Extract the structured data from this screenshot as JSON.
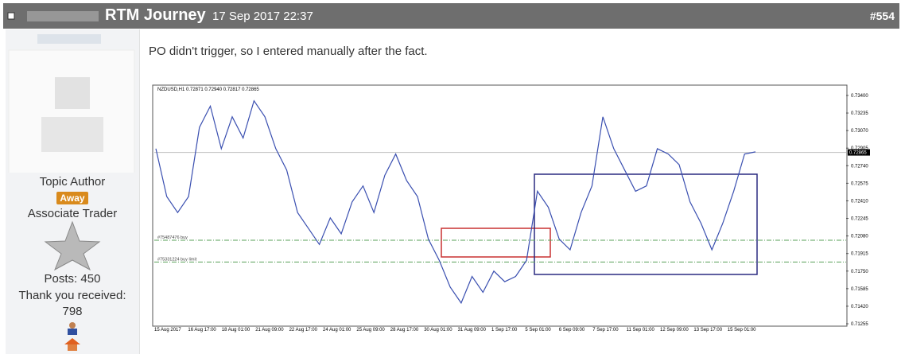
{
  "header": {
    "title": "RTM Journey",
    "date": "17 Sep 2017 22:37",
    "post_number": "#554"
  },
  "author": {
    "role": "Topic Author",
    "status": "Away",
    "rank": "Associate Trader",
    "posts": "Posts: 450",
    "thanks_label": "Thank you received:",
    "thanks": "798"
  },
  "post": {
    "text": "PO didn't trigger, so I entered manually after the fact.",
    "chart": {
      "type": "candlestick",
      "symbol_info": "NZDUSD,H1  0.72871 0.72940 0.72817 0.72865",
      "ylim": [
        0.71255,
        0.734
      ],
      "yticks": [
        {
          "value": 0.734,
          "label": "0.73400"
        },
        {
          "value": 0.73235,
          "label": "0.73235"
        },
        {
          "value": 0.7307,
          "label": "0.73070"
        },
        {
          "value": 0.72905,
          "label": "0.72905"
        },
        {
          "value": 0.7274,
          "label": "0.72740"
        },
        {
          "value": 0.72575,
          "label": "0.72575"
        },
        {
          "value": 0.7241,
          "label": "0.72410"
        },
        {
          "value": 0.72245,
          "label": "0.72245"
        },
        {
          "value": 0.7208,
          "label": "0.72080"
        },
        {
          "value": 0.71915,
          "label": "0.71915"
        },
        {
          "value": 0.7175,
          "label": "0.71750"
        },
        {
          "value": 0.71585,
          "label": "0.71585"
        },
        {
          "value": 0.7142,
          "label": "0.71420"
        },
        {
          "value": 0.71255,
          "label": "0.71255"
        }
      ],
      "current_price": 0.72865,
      "x_labels": [
        "15 Aug 2017",
        "16 Aug 17:00",
        "18 Aug 01:00",
        "21 Aug 09:00",
        "22 Aug 17:00",
        "24 Aug 01:00",
        "25 Aug 09:00",
        "28 Aug 17:00",
        "30 Aug 01:00",
        "31 Aug 09:00",
        "1 Sep 17:00",
        "5 Sep 01:00",
        "6 Sep 09:00",
        "7 Sep 17:00",
        "11 Sep 01:00",
        "12 Sep 09:00",
        "13 Sep 17:00",
        "15 Sep 01:00"
      ],
      "orders": [
        {
          "label": "#75487476 buy",
          "price": 0.7204
        },
        {
          "label": "#75331224 buy limit",
          "price": 0.71835
        }
      ],
      "closes": [
        0.729,
        0.7245,
        0.723,
        0.7245,
        0.731,
        0.733,
        0.729,
        0.732,
        0.73,
        0.7335,
        0.732,
        0.729,
        0.727,
        0.723,
        0.7215,
        0.72,
        0.7225,
        0.721,
        0.724,
        0.7255,
        0.723,
        0.7265,
        0.7285,
        0.726,
        0.7245,
        0.7205,
        0.7185,
        0.716,
        0.7145,
        0.717,
        0.7155,
        0.7175,
        0.7165,
        0.717,
        0.7185,
        0.725,
        0.7235,
        0.7205,
        0.7195,
        0.723,
        0.7255,
        0.732,
        0.729,
        0.727,
        0.725,
        0.7255,
        0.729,
        0.7285,
        0.7275,
        0.724,
        0.722,
        0.7195,
        0.722,
        0.725,
        0.7285,
        0.7287
      ]
    }
  }
}
